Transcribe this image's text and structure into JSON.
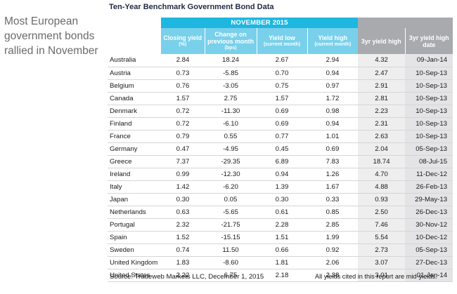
{
  "sidebar": {
    "note": "Most European government bonds rallied in November"
  },
  "table": {
    "title": "Ten-Year Benchmark Government Bond Data",
    "group_header": "NOVEMBER 2015",
    "columns": {
      "closing": {
        "label": "Closing yield",
        "unit": "(%)"
      },
      "change": {
        "label": "Change on previous month",
        "unit": "(bps)"
      },
      "low": {
        "label": "Yield low",
        "unit": "(current month)"
      },
      "high": {
        "label": "Yield high",
        "unit": "(current month)"
      },
      "high3": {
        "label": "3yr yield high"
      },
      "date3": {
        "label": "3yr yield high date"
      }
    },
    "rows": [
      {
        "country": "Australia",
        "closing": "2.84",
        "change": "18.24",
        "low": "2.67",
        "high": "2.94",
        "high3": "4.32",
        "date3": "09-Jan-14"
      },
      {
        "country": "Austria",
        "closing": "0.73",
        "change": "-5.85",
        "low": "0.70",
        "high": "0.94",
        "high3": "2.47",
        "date3": "10-Sep-13"
      },
      {
        "country": "Belgium",
        "closing": "0.76",
        "change": "-3.05",
        "low": "0.75",
        "high": "0.97",
        "high3": "2.91",
        "date3": "10-Sep-13"
      },
      {
        "country": "Canada",
        "closing": "1.57",
        "change": "2.75",
        "low": "1.57",
        "high": "1.72",
        "high3": "2.81",
        "date3": "10-Sep-13"
      },
      {
        "country": "Denmark",
        "closing": "0.72",
        "change": "-11.30",
        "low": "0.69",
        "high": "0.98",
        "high3": "2.23",
        "date3": "10-Sep-13"
      },
      {
        "country": "Finland",
        "closing": "0.72",
        "change": "-6.10",
        "low": "0.69",
        "high": "0.94",
        "high3": "2.31",
        "date3": "10-Sep-13"
      },
      {
        "country": "France",
        "closing": "0.79",
        "change": "0.55",
        "low": "0.77",
        "high": "1.01",
        "high3": "2.63",
        "date3": "10-Sep-13"
      },
      {
        "country": "Germany",
        "closing": "0.47",
        "change": "-4.95",
        "low": "0.45",
        "high": "0.69",
        "high3": "2.04",
        "date3": "05-Sep-13"
      },
      {
        "country": "Greece",
        "closing": "7.37",
        "change": "-29.35",
        "low": "6.89",
        "high": "7.83",
        "high3": "18.74",
        "date3": "08-Jul-15"
      },
      {
        "country": "Ireland",
        "closing": "0.99",
        "change": "-12.30",
        "low": "0.94",
        "high": "1.26",
        "high3": "4.70",
        "date3": "11-Dec-12"
      },
      {
        "country": "Italy",
        "closing": "1.42",
        "change": "-6.20",
        "low": "1.39",
        "high": "1.67",
        "high3": "4.88",
        "date3": "26-Feb-13"
      },
      {
        "country": "Japan",
        "closing": "0.30",
        "change": "0.05",
        "low": "0.30",
        "high": "0.33",
        "high3": "0.93",
        "date3": "29-May-13"
      },
      {
        "country": "Netherlands",
        "closing": "0.63",
        "change": "-5.65",
        "low": "0.61",
        "high": "0.85",
        "high3": "2.50",
        "date3": "26-Dec-13"
      },
      {
        "country": "Portugal",
        "closing": "2.32",
        "change": "-21.75",
        "low": "2.28",
        "high": "2.85",
        "high3": "7.46",
        "date3": "30-Nov-12"
      },
      {
        "country": "Spain",
        "closing": "1.52",
        "change": "-15.15",
        "low": "1.51",
        "high": "1.99",
        "high3": "5.54",
        "date3": "10-Dec-12"
      },
      {
        "country": "Sweden",
        "closing": "0.74",
        "change": "11.50",
        "low": "0.66",
        "high": "0.92",
        "high3": "2.73",
        "date3": "05-Sep-13"
      },
      {
        "country": "United Kingdom",
        "closing": "1.83",
        "change": "-8.60",
        "low": "1.81",
        "high": "2.06",
        "high3": "3.07",
        "date3": "27-Dec-13"
      },
      {
        "country": "United States",
        "closing": "2.22",
        "change": "6.75",
        "low": "2.18",
        "high": "2.38",
        "high3": "3.01",
        "date3": "01-Jan-14"
      }
    ]
  },
  "footer": {
    "source": "Source: Tradeweb Markets LLC, December 1, 2015",
    "note": "All yields cited in this report are mid-yields."
  },
  "colors": {
    "accent_blue": "#1eb7e0",
    "light_blue": "#79d0ea",
    "header_gray": "#a8aaad",
    "title_navy": "#1f2a44"
  }
}
